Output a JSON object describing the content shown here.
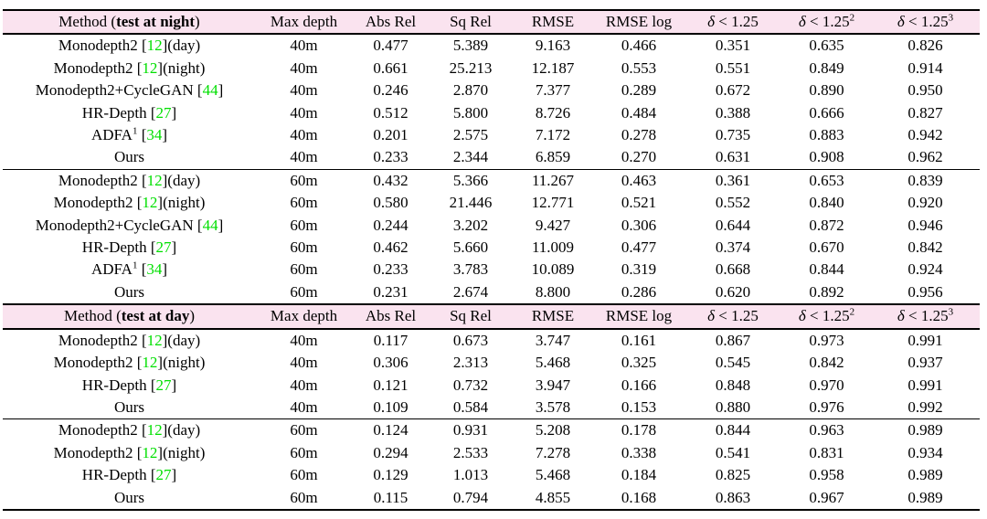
{
  "style": {
    "header_bg": "#fae3ef",
    "citation_color": "#00df00",
    "text_color": "#000000",
    "rule_color": "#000000",
    "page_background": "#ffffff"
  },
  "table": {
    "metric_column_labels": [
      "Max depth",
      "Abs Rel",
      "Sq Rel",
      "RMSE",
      "RMSE log",
      "δ < 1.25",
      "δ < 1.25²",
      "δ < 1.25³"
    ],
    "sections": [
      {
        "section_title": "Method (test at night)",
        "header": [
          [
            {
              "t": "Method ("
            },
            {
              "t": "test at night",
              "c": "b"
            },
            {
              "t": ")"
            }
          ],
          [
            {
              "t": "Max depth"
            }
          ],
          [
            {
              "t": "Abs Rel"
            }
          ],
          [
            {
              "t": "Sq Rel"
            }
          ],
          [
            {
              "t": "RMSE"
            }
          ],
          [
            {
              "t": "RMSE log"
            }
          ],
          [
            {
              "t": "δ",
              "c": "i"
            },
            {
              "t": " < 1.25"
            }
          ],
          [
            {
              "t": "δ",
              "c": "i"
            },
            {
              "t": " < 1.25"
            },
            {
              "t": "2",
              "c": "sup"
            }
          ],
          [
            {
              "t": "δ",
              "c": "i"
            },
            {
              "t": " < 1.25"
            },
            {
              "t": "3",
              "c": "sup"
            }
          ]
        ],
        "groups": [
          {
            "rows": [
              {
                "method": [
                  {
                    "t": "Monodepth2 ["
                  },
                  {
                    "t": "12",
                    "c": "cite"
                  },
                  {
                    "t": "](day)"
                  }
                ],
                "values": [
                  "40m",
                  "0.477",
                  "5.389",
                  "9.163",
                  "0.466",
                  "0.351",
                  "0.635",
                  "0.826"
                ],
                "bold": []
              },
              {
                "method": [
                  {
                    "t": "Monodepth2 ["
                  },
                  {
                    "t": "12",
                    "c": "cite"
                  },
                  {
                    "t": "](night)"
                  }
                ],
                "values": [
                  "40m",
                  "0.661",
                  "25.213",
                  "12.187",
                  "0.553",
                  "0.551",
                  "0.849",
                  "0.914"
                ],
                "bold": []
              },
              {
                "method": [
                  {
                    "t": "Monodepth2+CycleGAN ["
                  },
                  {
                    "t": "44",
                    "c": "cite"
                  },
                  {
                    "t": "]"
                  }
                ],
                "values": [
                  "40m",
                  "0.246",
                  "2.870",
                  "7.377",
                  "0.289",
                  "0.672",
                  "0.890",
                  "0.950"
                ],
                "bold": []
              },
              {
                "method": [
                  {
                    "t": "HR-Depth ["
                  },
                  {
                    "t": "27",
                    "c": "cite"
                  },
                  {
                    "t": "]"
                  }
                ],
                "values": [
                  "40m",
                  "0.512",
                  "5.800",
                  "8.726",
                  "0.484",
                  "0.388",
                  "0.666",
                  "0.827"
                ],
                "bold": []
              },
              {
                "method": [
                  {
                    "t": "ADFA"
                  },
                  {
                    "t": "1",
                    "c": "sup"
                  },
                  {
                    "t": " ["
                  },
                  {
                    "t": "34",
                    "c": "cite"
                  },
                  {
                    "t": "]"
                  }
                ],
                "values": [
                  "40m",
                  "0.201",
                  "2.575",
                  "7.172",
                  "0.278",
                  "0.735",
                  "0.883",
                  "0.942"
                ],
                "bold": [
                  1,
                  5
                ]
              },
              {
                "method": [
                  {
                    "t": "Ours"
                  }
                ],
                "values": [
                  "40m",
                  "0.233",
                  "2.344",
                  "6.859",
                  "0.270",
                  "0.631",
                  "0.908",
                  "0.962"
                ],
                "bold": [
                  2,
                  3,
                  4,
                  6,
                  7
                ]
              }
            ]
          },
          {
            "rows": [
              {
                "method": [
                  {
                    "t": "Monodepth2 ["
                  },
                  {
                    "t": "12",
                    "c": "cite"
                  },
                  {
                    "t": "](day)"
                  }
                ],
                "values": [
                  "60m",
                  "0.432",
                  "5.366",
                  "11.267",
                  "0.463",
                  "0.361",
                  "0.653",
                  "0.839"
                ],
                "bold": []
              },
              {
                "method": [
                  {
                    "t": "Monodepth2 ["
                  },
                  {
                    "t": "12",
                    "c": "cite"
                  },
                  {
                    "t": "](night)"
                  }
                ],
                "values": [
                  "60m",
                  "0.580",
                  "21.446",
                  "12.771",
                  "0.521",
                  "0.552",
                  "0.840",
                  "0.920"
                ],
                "bold": []
              },
              {
                "method": [
                  {
                    "t": "Monodepth2+CycleGAN ["
                  },
                  {
                    "t": "44",
                    "c": "cite"
                  },
                  {
                    "t": "]"
                  }
                ],
                "values": [
                  "60m",
                  "0.244",
                  "3.202",
                  "9.427",
                  "0.306",
                  "0.644",
                  "0.872",
                  "0.946"
                ],
                "bold": []
              },
              {
                "method": [
                  {
                    "t": "HR-Depth ["
                  },
                  {
                    "t": "27",
                    "c": "cite"
                  },
                  {
                    "t": "]"
                  }
                ],
                "values": [
                  "60m",
                  "0.462",
                  "5.660",
                  "11.009",
                  "0.477",
                  "0.374",
                  "0.670",
                  "0.842"
                ],
                "bold": []
              },
              {
                "method": [
                  {
                    "t": "ADFA"
                  },
                  {
                    "t": "1",
                    "c": "sup"
                  },
                  {
                    "t": " ["
                  },
                  {
                    "t": "34",
                    "c": "cite"
                  },
                  {
                    "t": "]"
                  }
                ],
                "values": [
                  "60m",
                  "0.233",
                  "3.783",
                  "10.089",
                  "0.319",
                  "0.668",
                  "0.844",
                  "0.924"
                ],
                "bold": [
                  5
                ]
              },
              {
                "method": [
                  {
                    "t": "Ours"
                  }
                ],
                "values": [
                  "60m",
                  "0.231",
                  "2.674",
                  "8.800",
                  "0.286",
                  "0.620",
                  "0.892",
                  "0.956"
                ],
                "bold": [
                  1,
                  2,
                  3,
                  4,
                  6,
                  7
                ]
              }
            ]
          }
        ]
      },
      {
        "section_title": "Method (test at day)",
        "header": [
          [
            {
              "t": "Method ("
            },
            {
              "t": "test at day",
              "c": "b"
            },
            {
              "t": ")"
            }
          ],
          [
            {
              "t": "Max depth"
            }
          ],
          [
            {
              "t": "Abs Rel"
            }
          ],
          [
            {
              "t": "Sq Rel"
            }
          ],
          [
            {
              "t": "RMSE"
            }
          ],
          [
            {
              "t": "RMSE log"
            }
          ],
          [
            {
              "t": "δ",
              "c": "i"
            },
            {
              "t": " < 1.25"
            }
          ],
          [
            {
              "t": "δ",
              "c": "i"
            },
            {
              "t": " < 1.25"
            },
            {
              "t": "2",
              "c": "sup"
            }
          ],
          [
            {
              "t": "δ",
              "c": "i"
            },
            {
              "t": " < 1.25"
            },
            {
              "t": "3",
              "c": "sup"
            }
          ]
        ],
        "groups": [
          {
            "rows": [
              {
                "method": [
                  {
                    "t": "Monodepth2 ["
                  },
                  {
                    "t": "12",
                    "c": "cite"
                  },
                  {
                    "t": "](day)"
                  }
                ],
                "values": [
                  "40m",
                  "0.117",
                  "0.673",
                  "3.747",
                  "0.161",
                  "0.867",
                  "0.973",
                  "0.991"
                ],
                "bold": []
              },
              {
                "method": [
                  {
                    "t": "Monodepth2 ["
                  },
                  {
                    "t": "12",
                    "c": "cite"
                  },
                  {
                    "t": "](night)"
                  }
                ],
                "values": [
                  "40m",
                  "0.306",
                  "2.313",
                  "5.468",
                  "0.325",
                  "0.545",
                  "0.842",
                  "0.937"
                ],
                "bold": []
              },
              {
                "method": [
                  {
                    "t": "HR-Depth ["
                  },
                  {
                    "t": "27",
                    "c": "cite"
                  },
                  {
                    "t": "]"
                  }
                ],
                "values": [
                  "40m",
                  "0.121",
                  "0.732",
                  "3.947",
                  "0.166",
                  "0.848",
                  "0.970",
                  "0.991"
                ],
                "bold": []
              },
              {
                "method": [
                  {
                    "t": "Ours"
                  }
                ],
                "values": [
                  "40m",
                  "0.109",
                  "0.584",
                  "3.578",
                  "0.153",
                  "0.880",
                  "0.976",
                  "0.992"
                ],
                "bold": [
                  1,
                  2,
                  3,
                  4,
                  5,
                  6,
                  7
                ]
              }
            ]
          },
          {
            "rows": [
              {
                "method": [
                  {
                    "t": "Monodepth2 ["
                  },
                  {
                    "t": "12",
                    "c": "cite"
                  },
                  {
                    "t": "](day)"
                  }
                ],
                "values": [
                  "60m",
                  "0.124",
                  "0.931",
                  "5.208",
                  "0.178",
                  "0.844",
                  "0.963",
                  "0.989"
                ],
                "bold": [
                  7
                ]
              },
              {
                "method": [
                  {
                    "t": "Monodepth2 ["
                  },
                  {
                    "t": "12",
                    "c": "cite"
                  },
                  {
                    "t": "](night)"
                  }
                ],
                "values": [
                  "60m",
                  "0.294",
                  "2.533",
                  "7.278",
                  "0.338",
                  "0.541",
                  "0.831",
                  "0.934"
                ],
                "bold": []
              },
              {
                "method": [
                  {
                    "t": "HR-Depth ["
                  },
                  {
                    "t": "27",
                    "c": "cite"
                  },
                  {
                    "t": "]"
                  }
                ],
                "values": [
                  "60m",
                  "0.129",
                  "1.013",
                  "5.468",
                  "0.184",
                  "0.825",
                  "0.958",
                  "0.989"
                ],
                "bold": [
                  7
                ]
              },
              {
                "method": [
                  {
                    "t": "Ours"
                  }
                ],
                "values": [
                  "60m",
                  "0.115",
                  "0.794",
                  "4.855",
                  "0.168",
                  "0.863",
                  "0.967",
                  "0.989"
                ],
                "bold": [
                  1,
                  2,
                  3,
                  4,
                  5,
                  6,
                  7
                ]
              }
            ]
          }
        ]
      }
    ]
  }
}
